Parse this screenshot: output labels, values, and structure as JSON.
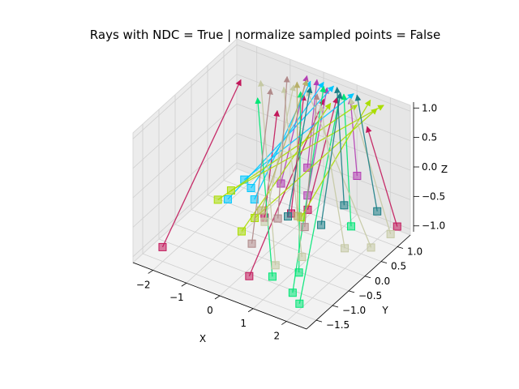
{
  "chart_data": {
    "type": "3d-line-with-markers",
    "title": "Rays with NDC = True | normalize sampled points = False",
    "xlabel": "X",
    "ylabel": "Y",
    "zlabel": "Z",
    "xticks": [
      "−2",
      "−1",
      "0",
      "1",
      "2"
    ],
    "yticks": [
      "−1.5",
      "−1.0",
      "−0.5",
      "0.0",
      "0.5",
      "1.0"
    ],
    "zticks": [
      "−1.0",
      "−0.5",
      "0.0",
      "0.5",
      "1.0"
    ],
    "xlim": [
      -2.6,
      2.6
    ],
    "ylim": [
      -1.8,
      1.4
    ],
    "zlim": [
      -1.1,
      1.1
    ],
    "grid": true,
    "rays": [
      {
        "color": "#c2185b",
        "origin": [
          -2.2,
          -1.3,
          -1.0
        ],
        "end": [
          -1.7,
          0.6,
          1.0
        ]
      },
      {
        "color": "#c2185b",
        "origin": [
          0.3,
          -1.2,
          -1.0
        ],
        "end": [
          0.5,
          0.9,
          1.0
        ]
      },
      {
        "color": "#c2185b",
        "origin": [
          2.4,
          1.2,
          -0.9
        ],
        "end": [
          1.5,
          1.2,
          0.6
        ]
      },
      {
        "color": "#c2185b",
        "origin": [
          0.0,
          0.4,
          -0.8
        ],
        "end": [
          -0.3,
          1.1,
          0.8
        ]
      },
      {
        "color": "#c2185b",
        "origin": [
          0.4,
          0.5,
          -0.7
        ],
        "end": [
          0.6,
          1.2,
          0.9
        ]
      },
      {
        "color": "#c2185b",
        "origin": [
          -0.6,
          0.2,
          -0.9
        ],
        "end": [
          -0.9,
          0.9,
          0.5
        ]
      },
      {
        "color": "#b43fb4",
        "origin": [
          0.1,
          0.8,
          -0.2
        ],
        "end": [
          -0.1,
          1.3,
          1.0
        ]
      },
      {
        "color": "#b43fb4",
        "origin": [
          1.2,
          1.2,
          -0.3
        ],
        "end": [
          0.9,
          1.3,
          0.9
        ]
      },
      {
        "color": "#b43fb4",
        "origin": [
          -0.5,
          0.6,
          -0.5
        ],
        "end": [
          -0.4,
          1.3,
          1.0
        ]
      },
      {
        "color": "#b43fb4",
        "origin": [
          0.2,
          0.7,
          -0.6
        ],
        "end": [
          0.3,
          1.2,
          1.0
        ]
      },
      {
        "color": "#00c8ff",
        "origin": [
          -1.8,
          0.3,
          -0.9
        ],
        "end": [
          0.4,
          1.3,
          1.0
        ]
      },
      {
        "color": "#00c8ff",
        "origin": [
          -1.3,
          0.5,
          -0.7
        ],
        "end": [
          0.1,
          1.3,
          1.0
        ]
      },
      {
        "color": "#00c8ff",
        "origin": [
          -1.1,
          0.4,
          -0.8
        ],
        "end": [
          -0.2,
          1.2,
          1.0
        ]
      },
      {
        "color": "#00c8ff",
        "origin": [
          -1.5,
          0.5,
          -0.6
        ],
        "end": [
          1.0,
          1.3,
          1.0
        ]
      },
      {
        "color": "#00e676",
        "origin": [
          0.8,
          -1.0,
          -1.0
        ],
        "end": [
          -1.2,
          0.6,
          0.8
        ]
      },
      {
        "color": "#00e676",
        "origin": [
          1.6,
          -1.2,
          -1.0
        ],
        "end": [
          0.2,
          1.2,
          1.0
        ]
      },
      {
        "color": "#00e676",
        "origin": [
          2.0,
          -1.4,
          -1.0
        ],
        "end": [
          0.7,
          1.2,
          1.0
        ]
      },
      {
        "color": "#00e676",
        "origin": [
          1.4,
          -0.8,
          -0.9
        ],
        "end": [
          -0.3,
          1.0,
          0.9
        ]
      },
      {
        "color": "#00e676",
        "origin": [
          1.7,
          0.5,
          -0.7
        ],
        "end": [
          0.8,
          1.2,
          1.0
        ]
      },
      {
        "color": "#aadd00",
        "origin": [
          -1.8,
          0.4,
          -0.8
        ],
        "end": [
          1.9,
          1.3,
          1.0
        ]
      },
      {
        "color": "#aadd00",
        "origin": [
          -0.8,
          0.1,
          -0.9
        ],
        "end": [
          1.7,
          1.3,
          0.9
        ]
      },
      {
        "color": "#aadd00",
        "origin": [
          -2.0,
          0.2,
          -0.9
        ],
        "end": [
          1.2,
          1.2,
          0.9
        ]
      },
      {
        "color": "#aadd00",
        "origin": [
          0.3,
          0.4,
          -0.8
        ],
        "end": [
          1.5,
          1.3,
          1.0
        ]
      },
      {
        "color": "#aadd00",
        "origin": [
          -0.9,
          -0.2,
          -1.0
        ],
        "end": [
          0.6,
          1.0,
          0.9
        ]
      },
      {
        "color": "#c5c9a4",
        "origin": [
          0.6,
          -0.7,
          -1.0
        ],
        "end": [
          -1.4,
          0.9,
          0.9
        ]
      },
      {
        "color": "#c5c9a4",
        "origin": [
          1.1,
          -0.4,
          -0.9
        ],
        "end": [
          -0.9,
          1.1,
          0.8
        ]
      },
      {
        "color": "#c5c9a4",
        "origin": [
          2.2,
          0.6,
          -1.0
        ],
        "end": [
          -0.2,
          1.1,
          0.9
        ]
      },
      {
        "color": "#c5c9a4",
        "origin": [
          2.3,
          1.1,
          -1.0
        ],
        "end": [
          0.9,
          1.3,
          0.9
        ]
      },
      {
        "color": "#c5c9a4",
        "origin": [
          1.8,
          0.2,
          -0.9
        ],
        "end": [
          0.3,
          1.0,
          0.8
        ]
      },
      {
        "color": "#c5c9a4",
        "origin": [
          -0.5,
          0.1,
          -0.9
        ],
        "end": [
          -0.6,
          1.1,
          0.9
        ]
      },
      {
        "color": "#1b7e86",
        "origin": [
          1.2,
          0.8,
          -0.6
        ],
        "end": [
          0.5,
          1.3,
          1.0
        ]
      },
      {
        "color": "#1b7e86",
        "origin": [
          1.9,
          1.1,
          -0.7
        ],
        "end": [
          1.1,
          1.3,
          1.0
        ]
      },
      {
        "color": "#1b7e86",
        "origin": [
          0.9,
          0.4,
          -0.8
        ],
        "end": [
          0.7,
          1.2,
          1.0
        ]
      },
      {
        "color": "#1b7e86",
        "origin": [
          0.0,
          0.3,
          -0.8
        ],
        "end": [
          -0.2,
          1.2,
          0.9
        ]
      },
      {
        "color": "#b08a8a",
        "origin": [
          -0.4,
          -0.4,
          -1.0
        ],
        "end": [
          -1.0,
          0.8,
          0.9
        ]
      },
      {
        "color": "#b08a8a",
        "origin": [
          0.6,
          0.2,
          -0.8
        ],
        "end": [
          0.1,
          1.1,
          0.9
        ]
      },
      {
        "color": "#b08a8a",
        "origin": [
          -0.3,
          0.3,
          -0.9
        ],
        "end": [
          -0.8,
          1.1,
          1.0
        ]
      },
      {
        "color": "#b8b06a",
        "origin": [
          -0.7,
          0.2,
          -0.8
        ],
        "end": [
          -0.3,
          1.2,
          1.0
        ]
      },
      {
        "color": "#b8b06a",
        "origin": [
          0.2,
          0.4,
          -0.8
        ],
        "end": [
          -0.6,
          1.2,
          0.9
        ]
      }
    ]
  }
}
